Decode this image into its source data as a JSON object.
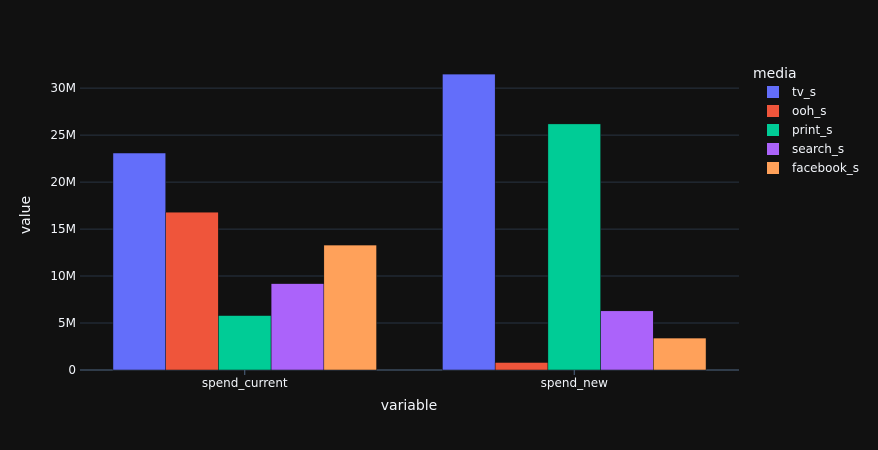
{
  "chart_data": {
    "type": "bar",
    "barmode": "group",
    "categories": [
      "spend_current",
      "spend_new"
    ],
    "series": [
      {
        "name": "tv_s",
        "color": "#636efa",
        "values": [
          23100000,
          31500000
        ]
      },
      {
        "name": "ooh_s",
        "color": "#ef553b",
        "values": [
          16800000,
          800000
        ]
      },
      {
        "name": "print_s",
        "color": "#00cc96",
        "values": [
          5800000,
          26200000
        ]
      },
      {
        "name": "search_s",
        "color": "#ab63fa",
        "values": [
          9200000,
          6300000
        ]
      },
      {
        "name": "facebook_s",
        "color": "#ffa15a",
        "values": [
          13300000,
          3400000
        ]
      }
    ],
    "xlabel": "variable",
    "ylabel": "value",
    "legend_title": "media",
    "ylim": [
      0,
      33000000
    ],
    "yticks": [
      0,
      5000000,
      10000000,
      15000000,
      20000000,
      25000000,
      30000000
    ],
    "ytick_labels": [
      "0",
      "5M",
      "10M",
      "15M",
      "20M",
      "25M",
      "30M"
    ],
    "grid": true,
    "legend_position": "top-right",
    "colors": {
      "background": "#111111",
      "grid": "#283442",
      "text": "#f2f5fa"
    }
  }
}
